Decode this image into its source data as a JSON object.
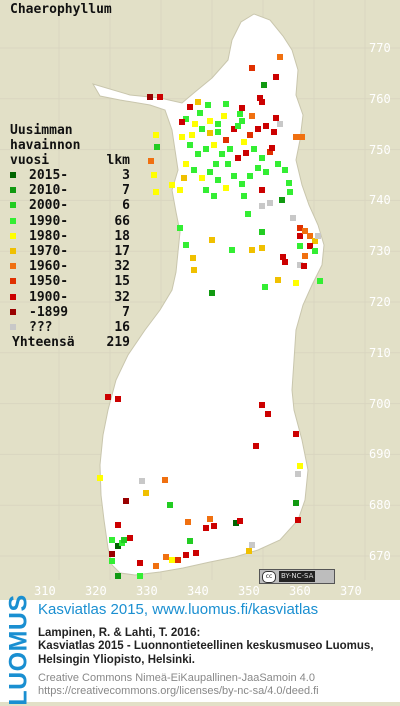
{
  "map": {
    "title": "Chaerophyllum",
    "background_color": "#e2e0c7",
    "land_color": "#ffffff",
    "grid_color": "#d9d6c0",
    "y_ticks": [
      "770",
      "760",
      "750",
      "740",
      "730",
      "720",
      "710",
      "700",
      "690",
      "680",
      "670"
    ],
    "x_ticks": [
      "310",
      "320",
      "330",
      "340",
      "350",
      "360",
      "370"
    ]
  },
  "legend": {
    "heading": [
      "Uusimman",
      "havainnon",
      "vuosi"
    ],
    "count_heading": "lkm",
    "items": [
      {
        "label": "2015-",
        "count": "3",
        "color": "#006400"
      },
      {
        "label": "2010-",
        "count": "7",
        "color": "#119911"
      },
      {
        "label": "2000-",
        "count": "6",
        "color": "#22cc22"
      },
      {
        "label": "1990-",
        "count": "66",
        "color": "#33ee33"
      },
      {
        "label": "1980-",
        "count": "18",
        "color": "#ffff00"
      },
      {
        "label": "1970-",
        "count": "17",
        "color": "#f0c000"
      },
      {
        "label": "1960-",
        "count": "32",
        "color": "#f07010"
      },
      {
        "label": "1950-",
        "count": "15",
        "color": "#e03000"
      },
      {
        "label": "1900-",
        "count": "32",
        "color": "#cc0000"
      },
      {
        "label": "-1899",
        "count": "7",
        "color": "#990000"
      },
      {
        "label": "???",
        "count": "16",
        "color": "#c8c8c8"
      }
    ],
    "total_label": "Yhteensä",
    "total_count": "219"
  },
  "license_badge": {
    "cc": "cc",
    "text": "BY-NC-SA"
  },
  "footer": {
    "logo_text": "LUOMUS",
    "headline": "Kasviatlas 2015, www.luomus.fi/kasviatlas",
    "citation_1": "Lampinen, R. & Lahti, T. 2016:",
    "citation_2": "Kasviatlas 2015 - Luonnontieteellinen keskusmuseo Luomus,",
    "citation_3": "Helsingin Yliopisto, Helsinki.",
    "license_1": "Creative Commons Nimeä-EiKaupallinen-JaaSamoin 4.0",
    "license_2": "https://creativecommons.org/licenses/by-nc-sa/4.0/deed.fi"
  }
}
